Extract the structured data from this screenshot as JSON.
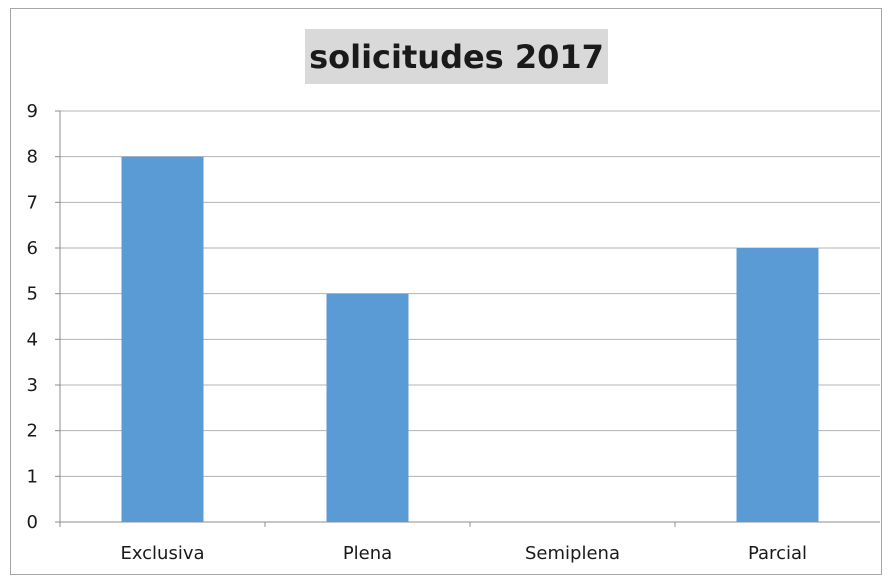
{
  "chart_data": {
    "type": "bar",
    "title": "solicitudes 2017",
    "categories": [
      "Exclusiva",
      "Plena",
      "Semiplena",
      "Parcial"
    ],
    "values": [
      8,
      5,
      0,
      6
    ],
    "xlabel": "",
    "ylabel": "",
    "ylim": [
      0,
      9
    ],
    "yticks": [
      0,
      1,
      2,
      3,
      4,
      5,
      6,
      7,
      8,
      9
    ],
    "grid": true,
    "legend": "none",
    "colors": {
      "bar": "#5b9bd5",
      "title_background": "#d9d9d9",
      "gridline": "#b3b3b3",
      "axis": "#8c8c8c",
      "text": "#1a1a1a"
    }
  }
}
